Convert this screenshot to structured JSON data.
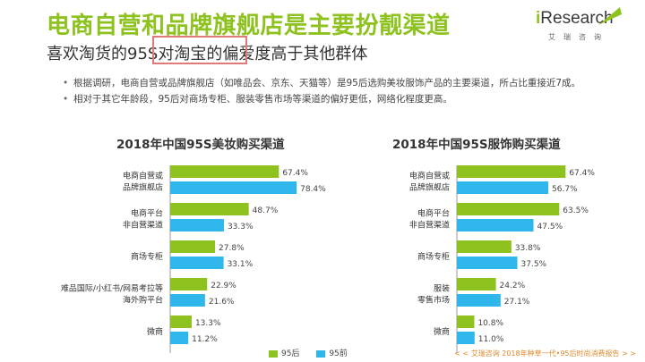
{
  "header": {
    "title": "电商自营和品牌旗舰店是主要扮靓渠道",
    "subtitle": "喜欢淘货的95S对淘宝的偏爱度高于其他群体"
  },
  "logo": {
    "name_prefix": "i",
    "name_rest": "Research",
    "cn": "艾瑞咨询"
  },
  "bullets": [
    "根据调研，电商自营或品牌旗舰店（如唯品会、京东、天猫等）是95后选购美妆服饰产品的主要渠道，所占比重接近7成。",
    "相对于其它年龄段，95后对商场专柜、服装零售市场等渠道的偏好更低，网络化程度更高。"
  ],
  "legend": [
    {
      "name": "95后",
      "color": "#8dc21f"
    },
    {
      "name": "95前",
      "color": "#2fb6ea"
    }
  ],
  "footer": "< < 艾瑞咨询 2018年种草一代•95后时尚消费报告 > >",
  "chart_data": [
    {
      "type": "bar",
      "orientation": "horizontal",
      "title": "2018年中国95S美妆购买渠道",
      "categories": [
        [
          "电商自营或",
          "品牌旗舰店"
        ],
        [
          "电商平台",
          "非自营渠道"
        ],
        [
          "商场专柜"
        ],
        [
          "难品国际/小红书/网易考拉等",
          "海外购平台"
        ],
        [
          "微商"
        ]
      ],
      "series": [
        {
          "name": "95后",
          "color": "#8dc21f",
          "values": [
            67.4,
            48.7,
            27.8,
            22.9,
            13.3
          ]
        },
        {
          "name": "95前",
          "color": "#2fb6ea",
          "values": [
            78.4,
            33.3,
            33.1,
            21.6,
            11.2
          ]
        }
      ],
      "value_suffix": "%",
      "xlim": [
        0,
        100
      ]
    },
    {
      "type": "bar",
      "orientation": "horizontal",
      "title": "2018年中国95S服饰购买渠道",
      "categories": [
        [
          "电商自营或",
          "品牌旗舰店"
        ],
        [
          "电商平台",
          "非自营渠道"
        ],
        [
          "商场专柜"
        ],
        [
          "服装",
          "零售市场"
        ],
        [
          "微商"
        ]
      ],
      "series": [
        {
          "name": "95后",
          "color": "#8dc21f",
          "values": [
            67.4,
            63.5,
            33.8,
            24.2,
            10.8
          ]
        },
        {
          "name": "95前",
          "color": "#2fb6ea",
          "values": [
            56.7,
            47.5,
            37.5,
            27.1,
            11.0
          ]
        }
      ],
      "value_suffix": "%",
      "xlim": [
        0,
        100
      ]
    }
  ]
}
